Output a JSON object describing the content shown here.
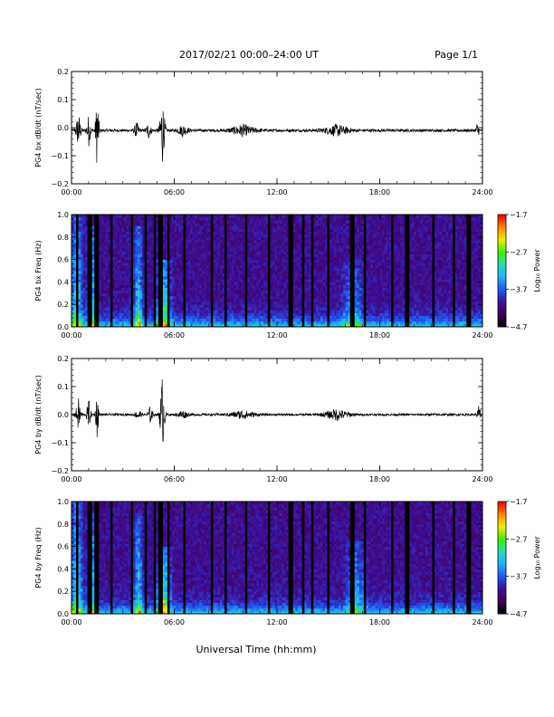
{
  "header": {
    "title": "2017/02/21  00:00–24:00 UT",
    "page": "Page 1/1"
  },
  "x_axis": {
    "title": "Universal Time (hh:mm)",
    "ticks": [
      "00:00",
      "06:00",
      "12:00",
      "18:00",
      "24:00"
    ],
    "range_hours": [
      0,
      24
    ]
  },
  "colors": {
    "trace": "#000000",
    "colormap": [
      "#000000",
      "#400060",
      "#3c14a0",
      "#1e5af0",
      "#1eb4ff",
      "#28dcb4",
      "#3cf000",
      "#f0f000",
      "#ff8c00",
      "#ff0000"
    ]
  },
  "chart_data": [
    {
      "type": "line",
      "ylabel": "PG4 bx dB/dt (nT/sec)",
      "ylim": [
        -0.2,
        0.2
      ],
      "yticks": [
        "0.2",
        "0.1",
        "0.0",
        "−0.1",
        "−0.2"
      ],
      "xticks": [
        "00:00",
        "06:00",
        "12:00",
        "18:00",
        "24:00"
      ],
      "baseline": -0.01,
      "noise_amplitude": 0.005,
      "bursts": [
        {
          "hour": 0.4,
          "amp": 0.07,
          "width": 0.3
        },
        {
          "hour": 1.0,
          "amp": 0.06,
          "width": 0.25
        },
        {
          "hour": 1.5,
          "amp": 0.15,
          "width": 0.2
        },
        {
          "hour": 3.8,
          "amp": 0.03,
          "width": 0.3
        },
        {
          "hour": 4.5,
          "amp": 0.03,
          "width": 0.3
        },
        {
          "hour": 5.3,
          "amp": 0.13,
          "width": 0.3
        },
        {
          "hour": 6.5,
          "amp": 0.02,
          "width": 0.6
        },
        {
          "hour": 10.0,
          "amp": 0.02,
          "width": 1.5
        },
        {
          "hour": 15.5,
          "amp": 0.02,
          "width": 1.5
        },
        {
          "hour": 23.7,
          "amp": 0.03,
          "width": 0.2
        }
      ]
    },
    {
      "type": "heatmap",
      "ylabel": "PG4 bx Freq (Hz)",
      "ylim": [
        0,
        1.0
      ],
      "yticks": [
        "1.0",
        "0.8",
        "0.6",
        "0.4",
        "0.2",
        "0.0"
      ],
      "xticks": [
        "00:00",
        "06:00",
        "12:00",
        "18:00",
        "24:00"
      ],
      "colorbar": {
        "label": "Log₁₀ Power",
        "ticks": [
          "−1.7",
          "−2.7",
          "−3.7",
          "−4.7"
        ],
        "range": [
          -4.7,
          -1.7
        ]
      },
      "gap_hours": [
        0.35,
        1.05,
        1.45,
        2.3,
        3.5,
        4.35,
        4.85,
        5.2,
        5.7,
        6.6,
        8.2,
        9.0,
        10.2,
        11.5,
        12.8,
        13.5,
        14.1,
        15.0,
        16.4,
        17.1,
        18.7,
        19.6,
        21.1,
        22.3,
        23.2
      ],
      "activity": [
        {
          "hour": 0.3,
          "width": 0.5,
          "fmax": 1.0,
          "level": 0.45
        },
        {
          "hour": 1.2,
          "width": 0.4,
          "fmax": 0.9,
          "level": 0.4
        },
        {
          "hour": 3.9,
          "width": 0.35,
          "fmax": 0.9,
          "level": 0.4
        },
        {
          "hour": 5.4,
          "width": 0.6,
          "fmax": 0.6,
          "level": 0.5
        },
        {
          "hour": 16.4,
          "width": 0.8,
          "fmax": 0.6,
          "level": 0.3
        }
      ]
    },
    {
      "type": "line",
      "ylabel": "PG4 by dB/dt (nT/sec)",
      "ylim": [
        -0.2,
        0.2
      ],
      "yticks": [
        "0.2",
        "0.1",
        "0.0",
        "−0.1",
        "−0.2"
      ],
      "xticks": [
        "00:00",
        "06:00",
        "12:00",
        "18:00",
        "24:00"
      ],
      "baseline": 0.0,
      "noise_amplitude": 0.004,
      "bursts": [
        {
          "hour": 0.4,
          "amp": 0.06,
          "width": 0.3
        },
        {
          "hour": 1.0,
          "amp": 0.06,
          "width": 0.25
        },
        {
          "hour": 1.5,
          "amp": 0.09,
          "width": 0.2
        },
        {
          "hour": 3.9,
          "amp": 0.025,
          "width": 0.3
        },
        {
          "hour": 4.6,
          "amp": 0.03,
          "width": 0.3
        },
        {
          "hour": 5.3,
          "amp": 0.14,
          "width": 0.3
        },
        {
          "hour": 6.5,
          "amp": 0.015,
          "width": 0.6
        },
        {
          "hour": 10.0,
          "amp": 0.015,
          "width": 1.5
        },
        {
          "hour": 15.5,
          "amp": 0.02,
          "width": 1.5
        },
        {
          "hour": 23.8,
          "amp": 0.04,
          "width": 0.2
        }
      ]
    },
    {
      "type": "heatmap",
      "ylabel": "PG4 by Freq (Hz)",
      "ylim": [
        0,
        1.0
      ],
      "yticks": [
        "1.0",
        "0.8",
        "0.6",
        "0.4",
        "0.2",
        "0.0"
      ],
      "xticks": [
        "00:00",
        "06:00",
        "12:00",
        "18:00",
        "24:00"
      ],
      "colorbar": {
        "label": "Log₁₀ Power",
        "ticks": [
          "−1.7",
          "−2.7",
          "−3.7",
          "−4.7"
        ],
        "range": [
          -4.7,
          -1.7
        ]
      },
      "gap_hours": [
        0.35,
        1.05,
        1.45,
        2.3,
        3.5,
        4.35,
        4.85,
        5.2,
        5.7,
        6.6,
        8.2,
        9.0,
        10.2,
        11.5,
        12.8,
        13.5,
        14.1,
        15.0,
        16.4,
        17.1,
        18.7,
        19.6,
        21.1,
        22.3,
        23.2
      ],
      "activity": [
        {
          "hour": 0.3,
          "width": 0.5,
          "fmax": 1.0,
          "level": 0.45
        },
        {
          "hour": 1.2,
          "width": 0.4,
          "fmax": 0.9,
          "level": 0.4
        },
        {
          "hour": 3.9,
          "width": 0.35,
          "fmax": 0.9,
          "level": 0.4
        },
        {
          "hour": 5.4,
          "width": 0.6,
          "fmax": 0.6,
          "level": 0.5
        },
        {
          "hour": 16.6,
          "width": 0.8,
          "fmax": 0.65,
          "level": 0.3
        }
      ]
    }
  ]
}
